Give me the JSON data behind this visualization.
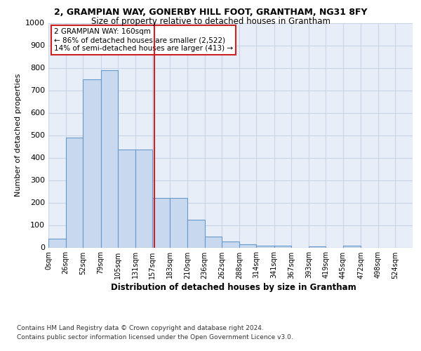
{
  "title1": "2, GRAMPIAN WAY, GONERBY HILL FOOT, GRANTHAM, NG31 8FY",
  "title2": "Size of property relative to detached houses in Grantham",
  "xlabel": "Distribution of detached houses by size in Grantham",
  "ylabel": "Number of detached properties",
  "footnote1": "Contains HM Land Registry data © Crown copyright and database right 2024.",
  "footnote2": "Contains public sector information licensed under the Open Government Licence v3.0.",
  "annotation_title": "2 GRAMPIAN WAY: 160sqm",
  "annotation_line1": "← 86% of detached houses are smaller (2,522)",
  "annotation_line2": "14% of semi-detached houses are larger (413) →",
  "bar_labels": [
    "0sqm",
    "26sqm",
    "52sqm",
    "79sqm",
    "105sqm",
    "131sqm",
    "157sqm",
    "183sqm",
    "210sqm",
    "236sqm",
    "262sqm",
    "288sqm",
    "314sqm",
    "341sqm",
    "367sqm",
    "393sqm",
    "419sqm",
    "445sqm",
    "472sqm",
    "498sqm",
    "524sqm"
  ],
  "bar_values": [
    40,
    490,
    750,
    790,
    435,
    435,
    220,
    220,
    125,
    50,
    27,
    14,
    9,
    9,
    0,
    5,
    0,
    8,
    0,
    0,
    0
  ],
  "bin_edges": [
    0,
    26,
    52,
    79,
    105,
    131,
    157,
    183,
    210,
    236,
    262,
    288,
    314,
    341,
    367,
    393,
    419,
    445,
    472,
    498,
    524,
    550
  ],
  "bar_color": "#c8d8ee",
  "bar_edge_color": "#6699cc",
  "vline_color": "#cc2222",
  "annotation_box_color": "#cc2222",
  "grid_color": "#c8d4e8",
  "background_color": "#e8eef8",
  "ylim": [
    0,
    1000
  ],
  "yticks": [
    0,
    100,
    200,
    300,
    400,
    500,
    600,
    700,
    800,
    900,
    1000
  ]
}
